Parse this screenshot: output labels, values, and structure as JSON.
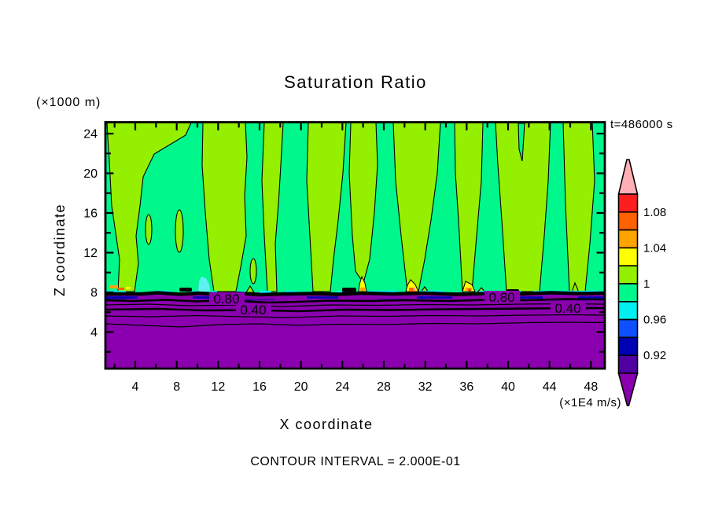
{
  "title": "Saturation Ratio",
  "annotations": {
    "y_axis_unit": "(×1000 m)",
    "x_axis_unit": "(×1E4 m/s)",
    "time": "t=486000 s",
    "contour_interval_text": "CONTOUR INTERVAL = 2.000E-01"
  },
  "colorbar": {
    "cells": [
      "#FF1E1E",
      "#FF6000",
      "#FFA300",
      "#FFFF00",
      "#94F000",
      "#00F78C",
      "#00EFEF",
      "#0C50FF",
      "#0000B4",
      "#4E00A0"
    ],
    "arrow_top_color": "#FFAFB4",
    "arrow_bottom_color": "#8A00AE",
    "labels": [
      "1.08",
      "1.04",
      "1",
      "0.96",
      "0.92"
    ]
  },
  "chart_data": {
    "type": "filled_contour",
    "title": "Saturation Ratio",
    "xlabel": "X coordinate",
    "ylabel": "Z coordinate",
    "x_unit_multiplier": "(×1E4 m/s)",
    "y_unit_multiplier": "(×1000 m)",
    "time_seconds": 486000,
    "x_range": [
      1.1,
      49.3
    ],
    "y_range": [
      0.3,
      25.2
    ],
    "x_ticks": [
      4,
      8,
      12,
      16,
      20,
      24,
      28,
      32,
      36,
      40,
      44,
      48
    ],
    "x_minor_ticks": [
      2,
      6,
      10,
      14,
      18,
      22,
      26,
      30,
      34,
      38,
      42,
      46
    ],
    "y_ticks": [
      24,
      20,
      16,
      12,
      8,
      4
    ],
    "y_minor_ticks": [
      22,
      18,
      14,
      10,
      6,
      2
    ],
    "contour_interval": 0.2,
    "line_contour_labels": [
      "0.80",
      "0.40"
    ],
    "line_contour_levels_below_cloud": [
      0.8,
      0.6,
      0.4,
      0.2
    ],
    "fill_levels": [
      0.9,
      0.92,
      0.94,
      0.96,
      0.98,
      1.0,
      1.02,
      1.04,
      1.06,
      1.08,
      1.1
    ],
    "fill_colors_bottom_to_top": [
      "#8A00AE",
      "#4E00A0",
      "#0000B4",
      "#0C50FF",
      "#00EFEF",
      "#00F78C",
      "#94F000",
      "#FFFF00",
      "#FFA300",
      "#FF6000",
      "#FF1E1E",
      "#FFAFB4"
    ],
    "colorbar_tick_labels": [
      "1.08",
      "1.04",
      "1",
      "0.96",
      "0.92"
    ],
    "regions": [
      {
        "where": "z > 8 (×1000 m)",
        "value_range": [
          0.98,
          1.02
        ],
        "pattern": "alternating vertical bands: spring green 0.98-1.00 and chartreuse 1.00-1.02"
      },
      {
        "where": "z ≈ 8 (×1000 m)",
        "value_range": [
          0.9,
          1.1
        ],
        "pattern": "thin transition layer with isolated supersaturation maxima up to ~1.10 (yellow/orange/red/pink spots) and cyan/blue minima"
      },
      {
        "where": "z < 8 (×1000 m)",
        "value_range": [
          0.0,
          0.9
        ],
        "pattern": "strongly sub-saturated purple region, line contours 0.80 0.60 0.40 0.20 stacked toward surface"
      }
    ],
    "supersaturated_band_centers_x": [
      2.9,
      12.6,
      17.4,
      22.5,
      26.0,
      31.2,
      36.2,
      41.4,
      46.7
    ]
  }
}
